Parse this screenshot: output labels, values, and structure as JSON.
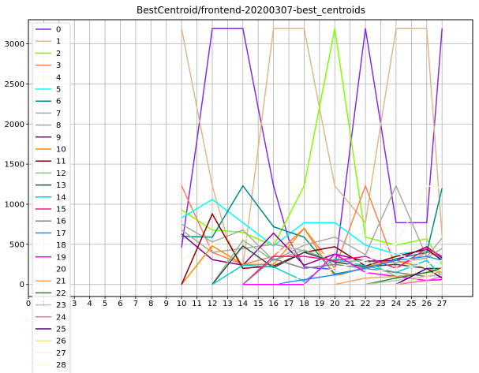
{
  "chart_data": {
    "type": "line",
    "title": "BestCentroid/frontend-20200307-best_centroids",
    "xlabel": "",
    "ylabel": "",
    "xlim": [
      0,
      29
    ],
    "ylim": [
      -150,
      3300
    ],
    "x_ticks": [
      "0",
      "1",
      "2",
      "3",
      "4",
      "5",
      "6",
      "7",
      "8",
      "9",
      "10",
      "11",
      "12",
      "13",
      "14",
      "15",
      "16",
      "17",
      "18",
      "19",
      "20",
      "21",
      "22",
      "23",
      "24",
      "25",
      "26",
      "27"
    ],
    "y_ticks": [
      0,
      500,
      1000,
      1500,
      2000,
      2500,
      3000
    ],
    "grid": true,
    "legend_position": "top-left",
    "series": [
      {
        "name": "0",
        "color": "#8a2be2",
        "x": [
          10,
          11,
          12,
          13,
          14,
          15,
          16,
          17,
          18,
          19,
          20,
          21,
          22,
          23,
          24,
          25,
          26,
          27
        ],
        "values": [
          460,
          1800,
          3190,
          3190,
          3190,
          2200,
          1230,
          560,
          220,
          200,
          190,
          1700,
          3190,
          2000,
          770,
          770,
          770,
          3190
        ]
      },
      {
        "name": "1",
        "color": "#deb887",
        "x": [
          10,
          11,
          12,
          13,
          14,
          15,
          16,
          17,
          18,
          19,
          20,
          21,
          22,
          23,
          24,
          25,
          26,
          27
        ],
        "values": [
          3190,
          2200,
          1230,
          560,
          220,
          1700,
          3190,
          3190,
          3190,
          2200,
          1230,
          1000,
          770,
          2000,
          3190,
          3190,
          3190,
          600
        ]
      },
      {
        "name": "2",
        "color": "#7fff00",
        "x": [
          10,
          12,
          14,
          16,
          18,
          20,
          22,
          24,
          26,
          27
        ],
        "values": [
          930,
          680,
          650,
          480,
          1230,
          3190,
          590,
          490,
          570,
          250
        ]
      },
      {
        "name": "3",
        "color": "#ff7f50",
        "x": [
          10,
          12,
          14,
          16,
          18,
          20,
          22,
          24,
          26,
          27
        ],
        "values": [
          1230,
          400,
          250,
          350,
          700,
          200,
          1230,
          200,
          400,
          350
        ]
      },
      {
        "name": "4",
        "color": "#fff8dc",
        "x": [
          10,
          12,
          14,
          16,
          18,
          20,
          22,
          24,
          26,
          27
        ],
        "values": [
          300,
          500,
          600,
          400,
          500,
          300,
          400,
          500,
          1230,
          1200
        ]
      },
      {
        "name": "5",
        "color": "#00ffff",
        "x": [
          10,
          12,
          14,
          16,
          18,
          20,
          22,
          24,
          26,
          27
        ],
        "values": [
          830,
          1060,
          770,
          480,
          770,
          770,
          490,
          380,
          420,
          320
        ]
      },
      {
        "name": "6",
        "color": "#008b8b",
        "x": [
          10,
          12,
          14,
          16,
          18,
          20,
          22,
          24,
          26,
          27
        ],
        "values": [
          600,
          590,
          1230,
          720,
          590,
          130,
          200,
          320,
          400,
          1200
        ]
      },
      {
        "name": "7",
        "color": "#a9a9a9",
        "x": [
          10,
          12,
          14,
          16,
          18,
          20,
          22,
          24,
          26,
          27
        ],
        "values": [
          750,
          530,
          680,
          300,
          490,
          590,
          370,
          1230,
          340,
          580
        ]
      },
      {
        "name": "8",
        "color": "#a9a9a9",
        "x": [
          10,
          12,
          14,
          16,
          18,
          20,
          22,
          24,
          26,
          27
        ],
        "values": [
          680,
          400,
          450,
          500,
          420,
          280,
          300,
          270,
          330,
          450
        ]
      },
      {
        "name": "9",
        "color": "#8b008b",
        "x": [
          10,
          12,
          14,
          16,
          18,
          20,
          22,
          24,
          26,
          27
        ],
        "values": [
          630,
          310,
          240,
          640,
          240,
          380,
          290,
          300,
          470,
          330
        ]
      },
      {
        "name": "10",
        "color": "#ff8c00",
        "x": [
          10,
          12,
          14,
          16,
          18,
          20,
          22,
          24,
          26,
          27
        ],
        "values": [
          0,
          480,
          250,
          250,
          700,
          100,
          220,
          300,
          200,
          150
        ]
      },
      {
        "name": "11",
        "color": "#8b0000",
        "x": [
          10,
          12,
          14,
          16,
          18,
          20,
          22,
          24,
          26,
          27
        ],
        "values": [
          0,
          880,
          200,
          230,
          400,
          470,
          230,
          350,
          440,
          300
        ]
      },
      {
        "name": "12",
        "color": "#8fbc8f",
        "x": [
          12,
          14,
          16,
          18,
          20,
          22,
          24,
          26,
          27
        ],
        "values": [
          0,
          550,
          300,
          430,
          280,
          300,
          100,
          150,
          200
        ]
      },
      {
        "name": "13",
        "color": "#2f4f4f",
        "x": [
          12,
          14,
          16,
          18,
          20,
          22,
          24,
          26,
          27
        ],
        "values": [
          0,
          480,
          210,
          400,
          280,
          220,
          250,
          200,
          200
        ]
      },
      {
        "name": "14",
        "color": "#00ced1",
        "x": [
          12,
          14,
          16,
          18,
          20,
          22,
          24,
          26,
          27
        ],
        "values": [
          0,
          240,
          220,
          40,
          320,
          230,
          150,
          300,
          100
        ]
      },
      {
        "name": "15",
        "color": "#ff1493",
        "x": [
          14,
          16,
          18,
          20,
          22,
          24,
          26,
          27
        ],
        "values": [
          0,
          350,
          350,
          300,
          350,
          200,
          450,
          350
        ]
      },
      {
        "name": "16",
        "color": "#808080",
        "x": [
          14,
          16,
          18,
          20,
          22,
          24,
          26,
          27
        ],
        "values": [
          0,
          320,
          200,
          250,
          200,
          150,
          100,
          120
        ]
      },
      {
        "name": "17",
        "color": "#1e90ff",
        "x": [
          16,
          18,
          20,
          22,
          24,
          26,
          27
        ],
        "values": [
          0,
          60,
          120,
          200,
          300,
          350,
          300
        ]
      },
      {
        "name": "18",
        "color": "#fffaf0",
        "x": [
          16,
          18,
          20,
          22,
          24,
          26,
          27
        ],
        "values": [
          0,
          100,
          200,
          300,
          400,
          200,
          100
        ]
      },
      {
        "name": "19",
        "color": "#ff00ff",
        "x": [
          14,
          16,
          18,
          20,
          22,
          24,
          26,
          27
        ],
        "values": [
          0,
          0,
          0,
          380,
          150,
          100,
          50,
          60
        ]
      },
      {
        "name": "20",
        "color": "#fffafa",
        "x": [
          18,
          20,
          22,
          24,
          26,
          27
        ],
        "values": [
          0,
          100,
          150,
          200,
          250,
          300
        ]
      },
      {
        "name": "21",
        "color": "#f4a460",
        "x": [
          20,
          22,
          24,
          26,
          27
        ],
        "values": [
          0,
          80,
          100,
          150,
          150
        ]
      },
      {
        "name": "22",
        "color": "#228b22",
        "x": [
          22,
          24,
          26,
          27
        ],
        "values": [
          0,
          80,
          150,
          200
        ]
      },
      {
        "name": "23",
        "color": "#c0c0c0",
        "x": [
          22,
          24,
          26,
          27
        ],
        "values": [
          0,
          50,
          100,
          120
        ]
      },
      {
        "name": "24",
        "color": "#ff69b4",
        "x": [
          24,
          26,
          27
        ],
        "values": [
          0,
          50,
          100
        ]
      },
      {
        "name": "25",
        "color": "#4b0082",
        "x": [
          24,
          26,
          27
        ],
        "values": [
          0,
          200,
          80
        ]
      },
      {
        "name": "26",
        "color": "#f0e68c",
        "x": [
          24,
          26,
          27
        ],
        "values": [
          0,
          100,
          200
        ]
      },
      {
        "name": "27",
        "color": "#fff0f5",
        "x": [
          26,
          27
        ],
        "values": [
          0,
          50
        ]
      },
      {
        "name": "28",
        "color": "#fffacd",
        "x": [
          26,
          27
        ],
        "values": [
          0,
          30
        ]
      }
    ]
  }
}
